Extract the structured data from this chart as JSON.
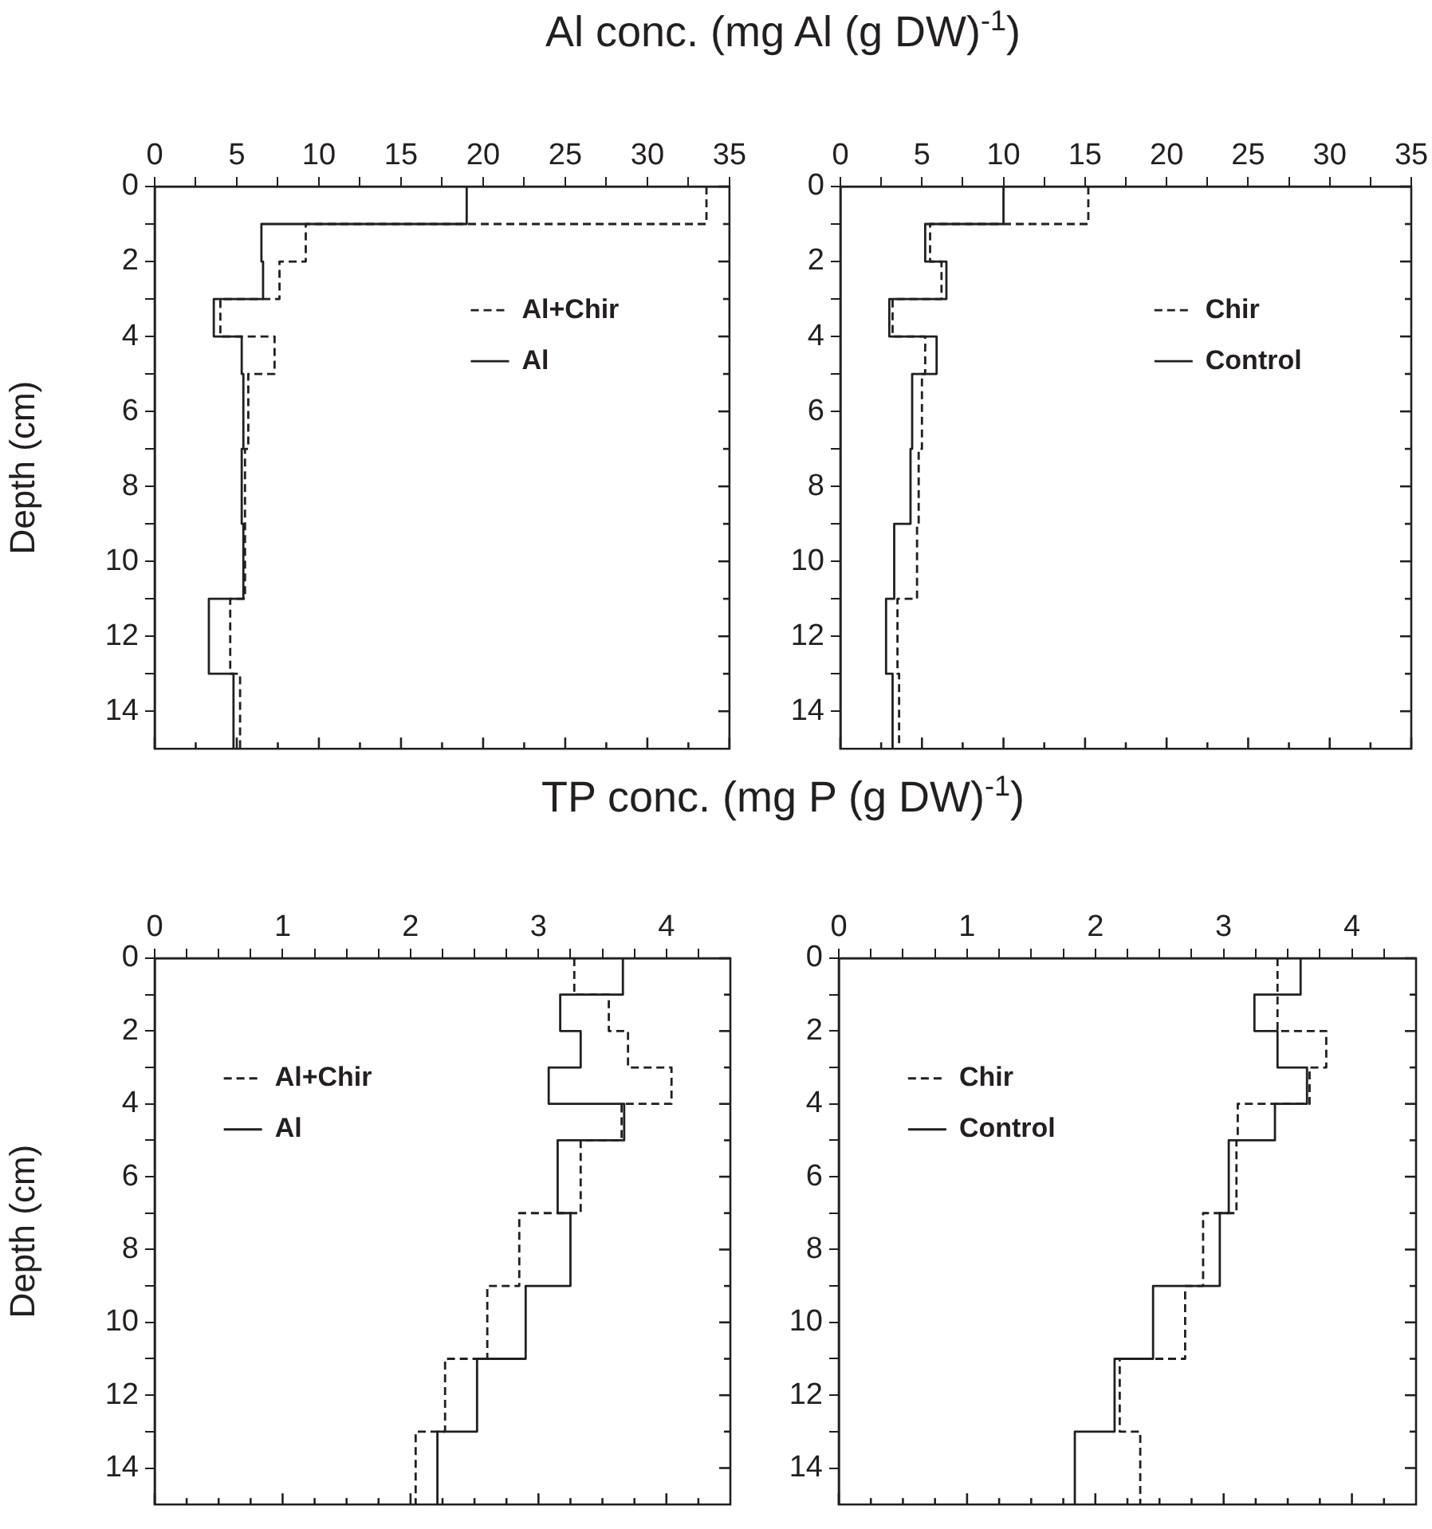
{
  "chart_data": [
    {
      "type": "line",
      "title": "Al conc.  (mg Al (g DW)$^{-1}$)",
      "ylabel": "Depth (cm)",
      "xlim": [
        0,
        35
      ],
      "xticks": [
        0,
        {
          "value": 2.5,
          "label": null
        },
        5,
        {
          "value": 7.5,
          "label": null
        },
        10,
        {
          "value": 12.5,
          "label": null
        },
        15,
        {
          "value": 17.5,
          "label": null
        },
        20,
        {
          "value": 22.5,
          "label": null
        },
        25,
        {
          "value": 27.5,
          "label": null
        },
        30,
        {
          "value": 32.5,
          "label": null
        },
        35
      ],
      "ylim": [
        15,
        0
      ],
      "yticks": [
        0,
        {
          "value": 1,
          "label": null
        },
        2,
        {
          "value": 3,
          "label": null
        },
        4,
        {
          "value": 5,
          "label": null
        },
        6,
        {
          "value": 7,
          "label": null
        },
        8,
        {
          "value": 9,
          "label": null
        },
        10,
        {
          "value": 11,
          "label": null
        },
        12,
        {
          "value": 13,
          "label": null
        },
        14
      ],
      "legend": "top right",
      "grid": false,
      "series": [
        {
          "name": "Al+Chir",
          "color": "#231f20",
          "line_style": "dashed",
          "x": [
            33.6,
            33.6,
            9.2,
            9.2,
            7.6,
            7.6,
            4.0,
            4.0,
            7.3,
            7.3,
            5.7,
            5.7,
            5.5,
            5.5,
            5.5,
            5.5,
            4.6,
            4.6,
            5.2,
            5.2
          ],
          "values": [
            0,
            1,
            1,
            2,
            2,
            3,
            3,
            4,
            4,
            5,
            5,
            7,
            7,
            9,
            9,
            11,
            11,
            13,
            13,
            15
          ]
        },
        {
          "name": "Al",
          "color": "#231f20",
          "line_style": "solid",
          "x": [
            19,
            19,
            6.5,
            6.5,
            6.6,
            6.6,
            3.6,
            3.6,
            5.3,
            5.3,
            5.4,
            5.4,
            5.3,
            5.3,
            5.4,
            5.4,
            3.3,
            3.3,
            4.8,
            4.8
          ],
          "values": [
            0,
            1,
            1,
            2,
            2,
            3,
            3,
            4,
            4,
            5,
            5,
            7,
            7,
            9,
            9,
            11,
            11,
            13,
            13,
            15
          ]
        }
      ]
    },
    {
      "type": "line",
      "xlim": [
        0,
        35
      ],
      "xticks": [
        0,
        {
          "value": 2.5,
          "label": null
        },
        5,
        {
          "value": 7.5,
          "label": null
        },
        10,
        {
          "value": 12.5,
          "label": null
        },
        15,
        {
          "value": 17.5,
          "label": null
        },
        20,
        {
          "value": 22.5,
          "label": null
        },
        25,
        {
          "value": 27.5,
          "label": null
        },
        30,
        {
          "value": 32.5,
          "label": null
        },
        35
      ],
      "ylim": [
        15,
        0
      ],
      "yticks": [
        0,
        {
          "value": 1,
          "label": null
        },
        2,
        {
          "value": 3,
          "label": null
        },
        4,
        {
          "value": 5,
          "label": null
        },
        6,
        {
          "value": 7,
          "label": null
        },
        8,
        {
          "value": 9,
          "label": null
        },
        10,
        {
          "value": 11,
          "label": null
        },
        12,
        {
          "value": 13,
          "label": null
        },
        14
      ],
      "legend": "top right",
      "grid": false,
      "series": [
        {
          "name": "Chir",
          "color": "#231f20",
          "line_style": "dashed",
          "x": [
            15.2,
            15.2,
            5.5,
            5.5,
            6.2,
            6.2,
            3.2,
            3.2,
            5.2,
            5.2,
            5.0,
            5.0,
            4.8,
            4.8,
            4.7,
            4.7,
            3.5,
            3.5,
            3.6,
            3.6
          ],
          "values": [
            0,
            1,
            1,
            2,
            2,
            3,
            3,
            4,
            4,
            5,
            5,
            7,
            7,
            9,
            9,
            11,
            11,
            13,
            13,
            15
          ]
        },
        {
          "name": "Control",
          "color": "#231f20",
          "line_style": "solid",
          "x": [
            10.0,
            10.0,
            5.2,
            5.2,
            6.5,
            6.5,
            3.0,
            3.0,
            5.9,
            5.9,
            4.4,
            4.4,
            4.3,
            4.3,
            3.3,
            3.3,
            2.8,
            2.8,
            3.2,
            3.2
          ],
          "values": [
            0,
            1,
            1,
            2,
            2,
            3,
            3,
            4,
            4,
            5,
            5,
            7,
            7,
            9,
            9,
            11,
            11,
            13,
            13,
            15
          ]
        }
      ]
    },
    {
      "type": "line",
      "title": "TP conc.  (mg P (g DW)$^{-1}$)",
      "ylabel": "Depth (cm)",
      "xlim": [
        0,
        4.5
      ],
      "xticks": [
        0,
        {
          "value": 0.25,
          "label": null
        },
        {
          "value": 0.5,
          "label": null
        },
        {
          "value": 0.75,
          "label": null
        },
        1,
        {
          "value": 1.25,
          "label": null
        },
        {
          "value": 1.5,
          "label": null
        },
        {
          "value": 1.75,
          "label": null
        },
        2,
        {
          "value": 2.25,
          "label": null
        },
        {
          "value": 2.5,
          "label": null
        },
        {
          "value": 2.75,
          "label": null
        },
        3,
        {
          "value": 3.25,
          "label": null
        },
        {
          "value": 3.5,
          "label": null
        },
        {
          "value": 3.75,
          "label": null
        },
        4,
        {
          "value": 4.25,
          "label": null
        }
      ],
      "ylim": [
        15,
        0
      ],
      "yticks": [
        0,
        {
          "value": 1,
          "label": null
        },
        2,
        {
          "value": 3,
          "label": null
        },
        4,
        {
          "value": 5,
          "label": null
        },
        6,
        {
          "value": 7,
          "label": null
        },
        8,
        {
          "value": 9,
          "label": null
        },
        10,
        {
          "value": 11,
          "label": null
        },
        12,
        {
          "value": 13,
          "label": null
        },
        14
      ],
      "legend": "top left",
      "grid": false,
      "series": [
        {
          "name": "Al+Chir",
          "color": "#231f20",
          "line_style": "dashed",
          "x": [
            3.28,
            3.28,
            3.55,
            3.55,
            3.7,
            3.7,
            4.04,
            4.04,
            3.65,
            3.65,
            3.33,
            3.33,
            2.85,
            2.85,
            2.6,
            2.6,
            2.27,
            2.27,
            2.04,
            2.04
          ],
          "values": [
            0,
            1,
            1,
            2,
            2,
            3,
            3,
            4,
            4,
            5,
            5,
            7,
            7,
            9,
            9,
            11,
            11,
            13,
            13,
            15
          ]
        },
        {
          "name": "Al",
          "color": "#231f20",
          "line_style": "solid",
          "x": [
            3.66,
            3.66,
            3.17,
            3.17,
            3.33,
            3.33,
            3.08,
            3.08,
            3.67,
            3.67,
            3.15,
            3.15,
            3.25,
            3.25,
            2.9,
            2.9,
            2.52,
            2.52,
            2.21,
            2.21
          ],
          "values": [
            0,
            1,
            1,
            2,
            2,
            3,
            3,
            4,
            4,
            5,
            5,
            7,
            7,
            9,
            9,
            11,
            11,
            13,
            13,
            15
          ]
        }
      ]
    },
    {
      "type": "line",
      "xlim": [
        0,
        4.5
      ],
      "xticks": [
        0,
        {
          "value": 0.25,
          "label": null
        },
        {
          "value": 0.5,
          "label": null
        },
        {
          "value": 0.75,
          "label": null
        },
        1,
        {
          "value": 1.25,
          "label": null
        },
        {
          "value": 1.5,
          "label": null
        },
        {
          "value": 1.75,
          "label": null
        },
        2,
        {
          "value": 2.25,
          "label": null
        },
        {
          "value": 2.5,
          "label": null
        },
        {
          "value": 2.75,
          "label": null
        },
        3,
        {
          "value": 3.25,
          "label": null
        },
        {
          "value": 3.5,
          "label": null
        },
        {
          "value": 3.75,
          "label": null
        },
        4,
        {
          "value": 4.25,
          "label": null
        }
      ],
      "ylim": [
        15,
        0
      ],
      "yticks": [
        0,
        {
          "value": 1,
          "label": null
        },
        2,
        {
          "value": 3,
          "label": null
        },
        4,
        {
          "value": 5,
          "label": null
        },
        6,
        {
          "value": 7,
          "label": null
        },
        8,
        {
          "value": 9,
          "label": null
        },
        10,
        {
          "value": 11,
          "label": null
        },
        12,
        {
          "value": 13,
          "label": null
        },
        14
      ],
      "legend": "top left",
      "grid": false,
      "series": [
        {
          "name": "Chir",
          "color": "#231f20",
          "line_style": "dashed",
          "x": [
            3.42,
            3.42,
            3.42,
            3.42,
            3.8,
            3.8,
            3.67,
            3.67,
            3.11,
            3.11,
            3.1,
            3.1,
            2.84,
            2.84,
            2.7,
            2.7,
            2.19,
            2.19,
            2.35,
            2.35
          ],
          "values": [
            0,
            1,
            1,
            2,
            2,
            3,
            3,
            4,
            4,
            5,
            5,
            7,
            7,
            9,
            9,
            11,
            11,
            13,
            13,
            15
          ]
        },
        {
          "name": "Control",
          "color": "#231f20",
          "line_style": "solid",
          "x": [
            3.6,
            3.6,
            3.24,
            3.24,
            3.42,
            3.42,
            3.65,
            3.65,
            3.4,
            3.4,
            3.04,
            3.04,
            2.97,
            2.97,
            2.45,
            2.45,
            2.15,
            2.15,
            1.84,
            1.84
          ],
          "values": [
            0,
            1,
            1,
            2,
            2,
            3,
            3,
            4,
            4,
            5,
            5,
            7,
            7,
            9,
            9,
            11,
            11,
            13,
            13,
            15
          ]
        }
      ]
    }
  ]
}
